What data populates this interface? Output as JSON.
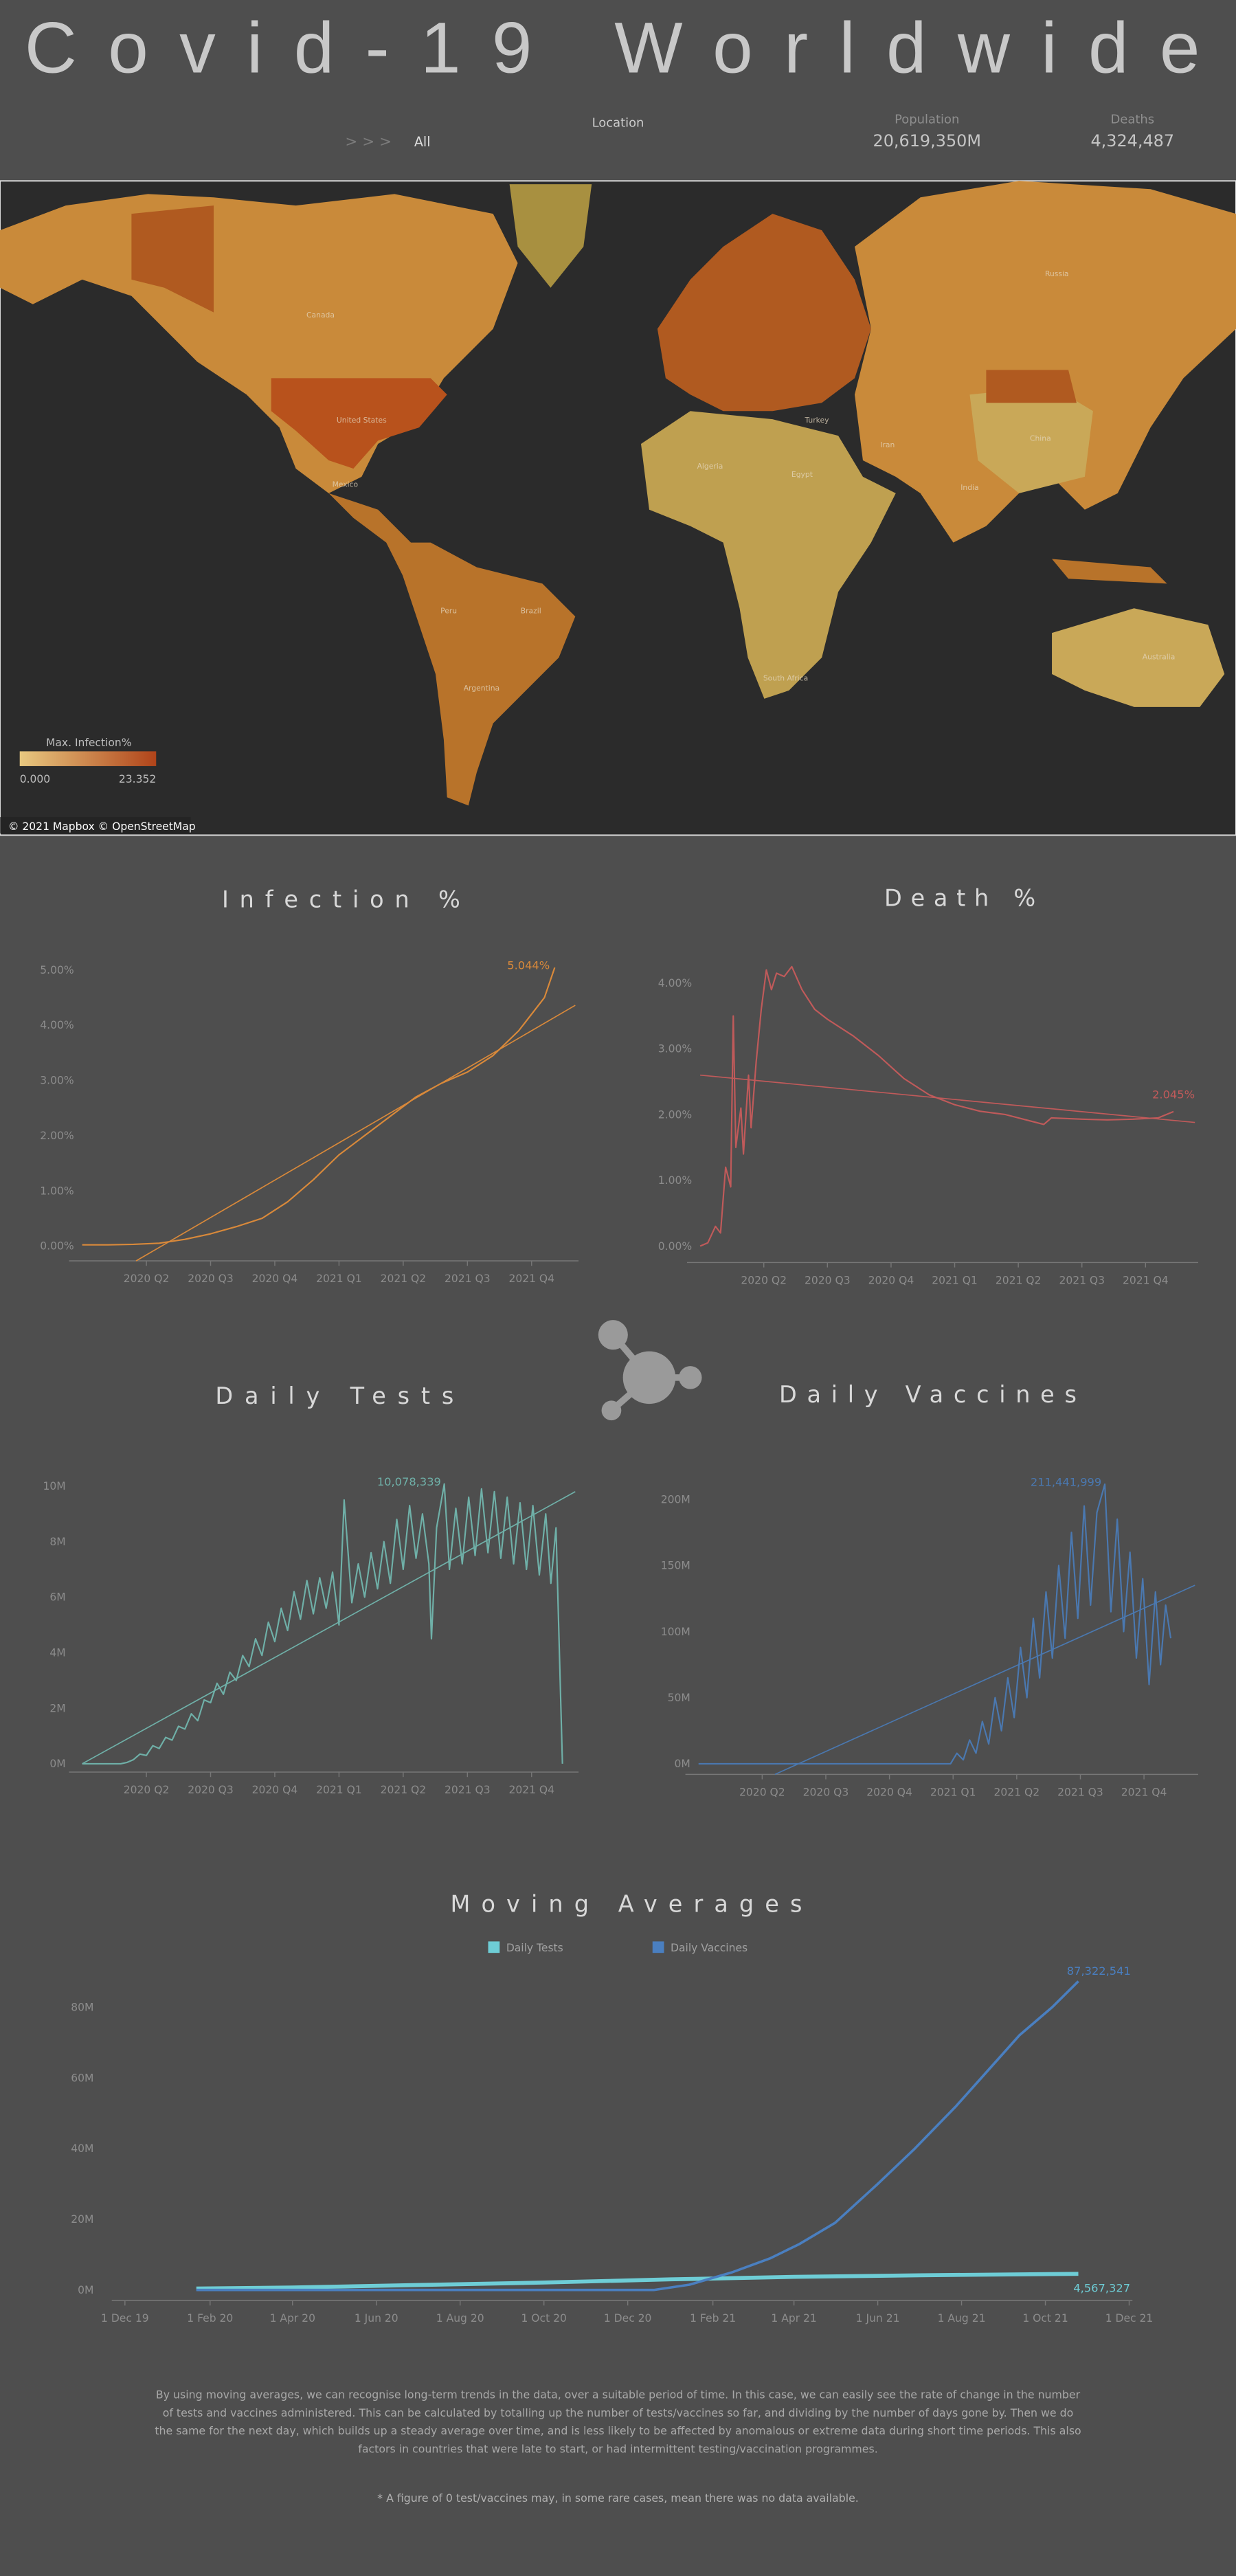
{
  "header": {
    "title": "Covid-19 Worldwide",
    "breadcrumb": "> > >",
    "filter": "All",
    "location_label": "Location",
    "population_label": "Population",
    "population": "20,619,350M",
    "deaths_label": "Deaths",
    "deaths": "4,324,487"
  },
  "map": {
    "labels": [
      "Canada",
      "United States",
      "Russia",
      "China",
      "India",
      "Brazil",
      "Australia",
      "Algeria",
      "Peru",
      "Argentina",
      "Iran",
      "Turkey",
      "Egypt",
      "South Africa",
      "Mexico"
    ],
    "legend": {
      "title": "Max. Infection%",
      "min": "0.000",
      "max": "23.352"
    },
    "credit": "© 2021 Mapbox © OpenStreetMap"
  },
  "chart_data": [
    {
      "type": "line",
      "title": "Infection %",
      "color": "#d9893a",
      "x": [
        2020.0,
        2020.1,
        2020.2,
        2020.3,
        2020.4,
        2020.5,
        2020.6,
        2020.7,
        2020.8,
        2020.9,
        2021.0,
        2021.1,
        2021.2,
        2021.3,
        2021.4,
        2021.5,
        2021.6,
        2021.7,
        2021.8,
        2021.84
      ],
      "values": [
        0.02,
        0.02,
        0.03,
        0.05,
        0.12,
        0.22,
        0.35,
        0.5,
        0.8,
        1.2,
        1.65,
        2.0,
        2.35,
        2.7,
        2.95,
        3.15,
        3.45,
        3.9,
        4.5,
        5.044
      ],
      "value_labels": [
        null,
        null,
        null,
        null,
        null,
        null,
        null,
        null,
        null,
        null,
        null,
        null,
        null,
        null,
        null,
        null,
        null,
        null,
        null,
        "5.044%"
      ],
      "trend": {
        "x": [
          2020.21,
          2021.92
        ],
        "values": [
          -0.27,
          4.36
        ]
      },
      "xlim": [
        2020.0,
        2021.92
      ],
      "ylim": [
        -0.27,
        5.2
      ],
      "xticks": [
        {
          "value": 2020.25,
          "label": "2020 Q2"
        },
        {
          "value": 2020.5,
          "label": "2020 Q3"
        },
        {
          "value": 2020.75,
          "label": "2020 Q4"
        },
        {
          "value": 2021.0,
          "label": "2021 Q1"
        },
        {
          "value": 2021.25,
          "label": "2021 Q2"
        },
        {
          "value": 2021.5,
          "label": "2021 Q3"
        },
        {
          "value": 2021.75,
          "label": "2021 Q4"
        }
      ],
      "yticks": [
        {
          "value": 0,
          "label": "0.00%"
        },
        {
          "value": 1,
          "label": "1.00%"
        },
        {
          "value": 2,
          "label": "2.00%"
        },
        {
          "value": 3,
          "label": "3.00%"
        },
        {
          "value": 4,
          "label": "4.00%"
        },
        {
          "value": 5,
          "label": "5.00%"
        }
      ]
    },
    {
      "type": "line",
      "title": "Death %",
      "color": "#c05a5a",
      "x": [
        2020.0,
        2020.03,
        2020.06,
        2020.08,
        2020.1,
        2020.12,
        2020.13,
        2020.14,
        2020.16,
        2020.17,
        2020.19,
        2020.2,
        2020.22,
        2020.24,
        2020.26,
        2020.28,
        2020.3,
        2020.33,
        2020.36,
        2020.4,
        2020.45,
        2020.5,
        2020.6,
        2020.7,
        2020.8,
        2020.9,
        2021.0,
        2021.1,
        2021.2,
        2021.3,
        2021.35,
        2021.38,
        2021.5,
        2021.6,
        2021.7,
        2021.8,
        2021.86
      ],
      "values": [
        0,
        0.05,
        0.3,
        0.2,
        1.2,
        0.9,
        3.5,
        1.5,
        2.1,
        1.4,
        2.6,
        1.8,
        2.8,
        3.6,
        4.2,
        3.9,
        4.15,
        4.1,
        4.25,
        3.9,
        3.6,
        3.45,
        3.2,
        2.9,
        2.55,
        2.3,
        2.15,
        2.05,
        2.0,
        1.9,
        1.85,
        1.95,
        1.93,
        1.92,
        1.93,
        1.95,
        2.045
      ],
      "value_labels": [
        null,
        null,
        null,
        null,
        null,
        null,
        null,
        null,
        null,
        null,
        null,
        null,
        null,
        null,
        null,
        null,
        null,
        null,
        null,
        null,
        null,
        null,
        null,
        null,
        null,
        null,
        null,
        null,
        null,
        null,
        null,
        null,
        null,
        null,
        null,
        null,
        "2.045%"
      ],
      "trend": {
        "x": [
          2020.0,
          2021.944
        ],
        "values": [
          2.6,
          1.88
        ]
      },
      "xlim": [
        2020.0,
        2021.944
      ],
      "ylim": [
        -0.25,
        4.4
      ],
      "xticks": [
        {
          "value": 2020.25,
          "label": "2020 Q2"
        },
        {
          "value": 2020.5,
          "label": "2020 Q3"
        },
        {
          "value": 2020.75,
          "label": "2020 Q4"
        },
        {
          "value": 2021.0,
          "label": "2021 Q1"
        },
        {
          "value": 2021.25,
          "label": "2021 Q2"
        },
        {
          "value": 2021.5,
          "label": "2021 Q3"
        },
        {
          "value": 2021.75,
          "label": "2021 Q4"
        }
      ],
      "yticks": [
        {
          "value": 0,
          "label": "0.00%"
        },
        {
          "value": 1,
          "label": "1.00%"
        },
        {
          "value": 2,
          "label": "2.00%"
        },
        {
          "value": 3,
          "label": "3.00%"
        },
        {
          "value": 4,
          "label": "4.00%"
        }
      ]
    },
    {
      "type": "line",
      "title": "Daily Tests",
      "color": "#6fb0a8",
      "x": [
        2020.0,
        2020.15,
        2020.175,
        2020.2,
        2020.225,
        2020.25,
        2020.275,
        2020.3,
        2020.325,
        2020.35,
        2020.375,
        2020.4,
        2020.425,
        2020.45,
        2020.475,
        2020.5,
        2020.525,
        2020.55,
        2020.575,
        2020.6,
        2020.625,
        2020.65,
        2020.675,
        2020.7,
        2020.725,
        2020.75,
        2020.775,
        2020.8,
        2020.825,
        2020.85,
        2020.875,
        2020.9,
        2020.925,
        2020.95,
        2020.975,
        2021.0,
        2021.02,
        2021.05,
        2021.075,
        2021.1,
        2021.125,
        2021.15,
        2021.175,
        2021.2,
        2021.225,
        2021.25,
        2021.275,
        2021.3,
        2021.325,
        2021.35,
        2021.36,
        2021.38,
        2021.41,
        2021.43,
        2021.455,
        2021.48,
        2021.505,
        2021.53,
        2021.555,
        2021.58,
        2021.605,
        2021.63,
        2021.655,
        2021.68,
        2021.705,
        2021.73,
        2021.755,
        2021.78,
        2021.805,
        2021.825,
        2021.845,
        2021.87
      ],
      "values": [
        0,
        0,
        50000,
        150000,
        350000,
        300000,
        650000,
        550000,
        950000,
        850000,
        1350000,
        1250000,
        1800000,
        1550000,
        2300000,
        2200000,
        2900000,
        2500000,
        3300000,
        3000000,
        3900000,
        3500000,
        4500000,
        3900000,
        5100000,
        4400000,
        5600000,
        4800000,
        6200000,
        5200000,
        6600000,
        5400000,
        6700000,
        5600000,
        6900000,
        5000000,
        9500000,
        5800000,
        7200000,
        6000000,
        7600000,
        6300000,
        8000000,
        6500000,
        8800000,
        7000000,
        9300000,
        7400000,
        9000000,
        7200000,
        4500000,
        8500000,
        10078339,
        7000000,
        9200000,
        7200000,
        9600000,
        7500000,
        9900000,
        7600000,
        9800000,
        7400000,
        9600000,
        7200000,
        9400000,
        7000000,
        9300000,
        6800000,
        9000000,
        6500000,
        8500000,
        0
      ],
      "value_labels": [
        null,
        null,
        null,
        null,
        null,
        null,
        null,
        null,
        null,
        null,
        null,
        null,
        null,
        null,
        null,
        null,
        null,
        null,
        null,
        null,
        null,
        null,
        null,
        null,
        null,
        null,
        null,
        null,
        null,
        null,
        null,
        null,
        null,
        null,
        null,
        null,
        null,
        null,
        null,
        null,
        null,
        null,
        null,
        null,
        null,
        null,
        null,
        null,
        null,
        null,
        null,
        null,
        "10,078,339",
        null,
        null,
        null,
        null,
        null,
        null,
        null,
        null,
        null,
        null,
        null,
        null,
        null,
        null,
        null,
        null,
        null,
        null,
        null
      ],
      "trend": {
        "x": [
          2020.0,
          2021.92
        ],
        "values": [
          0,
          9800000
        ]
      },
      "xlim": [
        2020.0,
        2021.92
      ],
      "ylim": [
        -300000,
        10800000
      ],
      "xticks": [
        {
          "value": 2020.25,
          "label": "2020 Q2"
        },
        {
          "value": 2020.5,
          "label": "2020 Q3"
        },
        {
          "value": 2020.75,
          "label": "2020 Q4"
        },
        {
          "value": 2021.0,
          "label": "2021 Q1"
        },
        {
          "value": 2021.25,
          "label": "2021 Q2"
        },
        {
          "value": 2021.5,
          "label": "2021 Q3"
        },
        {
          "value": 2021.75,
          "label": "2021 Q4"
        }
      ],
      "yticks": [
        {
          "value": 0,
          "label": "0M"
        },
        {
          "value": 2000000,
          "label": "2M"
        },
        {
          "value": 4000000,
          "label": "4M"
        },
        {
          "value": 6000000,
          "label": "6M"
        },
        {
          "value": 8000000,
          "label": "8M"
        },
        {
          "value": 10000000,
          "label": "10M"
        }
      ]
    },
    {
      "type": "line",
      "title": "Daily Vaccines",
      "color": "#4a78b0",
      "x": [
        2020.0,
        2020.99,
        2021.015,
        2021.04,
        2021.065,
        2021.09,
        2021.115,
        2021.14,
        2021.165,
        2021.19,
        2021.215,
        2021.24,
        2021.265,
        2021.29,
        2021.315,
        2021.34,
        2021.365,
        2021.39,
        2021.415,
        2021.44,
        2021.465,
        2021.49,
        2021.515,
        2021.54,
        2021.565,
        2021.596,
        2021.62,
        2021.645,
        2021.67,
        2021.695,
        2021.72,
        2021.745,
        2021.77,
        2021.795,
        2021.815,
        2021.835,
        2021.855
      ],
      "values": [
        0,
        0,
        8000000,
        3000000,
        18000000,
        8000000,
        32000000,
        15000000,
        50000000,
        25000000,
        65000000,
        35000000,
        88000000,
        50000000,
        110000000,
        65000000,
        130000000,
        80000000,
        150000000,
        95000000,
        175000000,
        110000000,
        195000000,
        120000000,
        190000000,
        211441999,
        115000000,
        185000000,
        100000000,
        160000000,
        80000000,
        140000000,
        60000000,
        130000000,
        75000000,
        120000000,
        95000000
      ],
      "value_labels": [
        null,
        null,
        null,
        null,
        null,
        null,
        null,
        null,
        null,
        null,
        null,
        null,
        null,
        null,
        null,
        null,
        null,
        null,
        null,
        null,
        null,
        null,
        null,
        null,
        null,
        "211,441,999",
        null,
        null,
        null,
        null,
        null,
        null,
        null,
        null,
        null,
        null,
        null
      ],
      "trend": {
        "x": [
          2020.3,
          2021.95
        ],
        "values": [
          -8000000,
          135000000
        ]
      },
      "xlim": [
        2020.0,
        2021.95
      ],
      "ylim": [
        -8000000,
        215000000
      ],
      "xticks": [
        {
          "value": 2020.25,
          "label": "2020 Q2"
        },
        {
          "value": 2020.5,
          "label": "2020 Q3"
        },
        {
          "value": 2020.75,
          "label": "2020 Q4"
        },
        {
          "value": 2021.0,
          "label": "2021 Q1"
        },
        {
          "value": 2021.25,
          "label": "2021 Q2"
        },
        {
          "value": 2021.5,
          "label": "2021 Q3"
        },
        {
          "value": 2021.75,
          "label": "2021 Q4"
        }
      ],
      "yticks": [
        {
          "value": 0,
          "label": "0M"
        },
        {
          "value": 50000000,
          "label": "50M"
        },
        {
          "value": 100000000,
          "label": "100M"
        },
        {
          "value": 150000000,
          "label": "150M"
        },
        {
          "value": 200000000,
          "label": "200M"
        }
      ]
    },
    {
      "type": "line",
      "title": "Moving Averages",
      "series": [
        {
          "name": "Daily Tests",
          "color": "#6ecdd6",
          "x": [
            "2020-01-22",
            "2020-04-01",
            "2020-07-01",
            "2020-10-01",
            "2021-01-01",
            "2021-04-01",
            "2021-07-01",
            "2021-10-25"
          ],
          "values": [
            400000,
            700000,
            1400000,
            2100000,
            3000000,
            3700000,
            4150000,
            4567327
          ],
          "value_labels": [
            null,
            null,
            null,
            null,
            null,
            null,
            null,
            "4,567,327"
          ]
        },
        {
          "name": "Daily Vaccines",
          "color": "#4a7fc0",
          "x": [
            "2020-01-22",
            "2020-12-20",
            "2021-01-15",
            "2021-02-15",
            "2021-03-15",
            "2021-04-05",
            "2021-05-01",
            "2021-06-01",
            "2021-06-28",
            "2021-07-28",
            "2021-08-20",
            "2021-09-12",
            "2021-10-06",
            "2021-10-25"
          ],
          "values": [
            0,
            0,
            1500000,
            5000000,
            9000000,
            13000000,
            19000000,
            30000000,
            40000000,
            52000000,
            62000000,
            72000000,
            80000000,
            87322541
          ],
          "value_labels": [
            null,
            null,
            null,
            null,
            null,
            null,
            null,
            null,
            null,
            null,
            null,
            null,
            null,
            "87,322,541"
          ]
        }
      ],
      "xlim": [
        "2019-12-01",
        "2021-12-01"
      ],
      "ylim": [
        -3000000,
        90000000
      ],
      "xticks": [
        {
          "value": "2019-12-01",
          "label": "1 Dec 19"
        },
        {
          "value": "2020-02-01",
          "label": "1 Feb 20"
        },
        {
          "value": "2020-04-01",
          "label": "1 Apr 20"
        },
        {
          "value": "2020-06-01",
          "label": "1 Jun 20"
        },
        {
          "value": "2020-08-01",
          "label": "1 Aug 20"
        },
        {
          "value": "2020-10-01",
          "label": "1 Oct 20"
        },
        {
          "value": "2020-12-01",
          "label": "1 Dec 20"
        },
        {
          "value": "2021-02-01",
          "label": "1 Feb 21"
        },
        {
          "value": "2021-04-01",
          "label": "1 Apr 21"
        },
        {
          "value": "2021-06-01",
          "label": "1 Jun 21"
        },
        {
          "value": "2021-08-01",
          "label": "1 Aug 21"
        },
        {
          "value": "2021-10-01",
          "label": "1 Oct 21"
        },
        {
          "value": "2021-12-01",
          "label": "1 Dec 21"
        }
      ],
      "yticks": [
        {
          "value": 0,
          "label": "0M"
        },
        {
          "value": 20000000,
          "label": "20M"
        },
        {
          "value": 40000000,
          "label": "40M"
        },
        {
          "value": 60000000,
          "label": "60M"
        },
        {
          "value": 80000000,
          "label": "80M"
        }
      ]
    }
  ],
  "footer": {
    "paragraph": [
      "By using moving averages, we can recognise long-term trends in the data, over a suitable period of time. In this case, we can easily see the rate of change in the number",
      "of tests and vaccines administered. This can be calculated by totalling up the number of tests/vaccines so far, and dividing by the number of days gone by. Then we do",
      "the same for the next day, which builds up a steady average over time, and is less likely to be affected by anomalous or extreme data during short time periods. This also",
      "factors in countries that were late to start, or had intermittent testing/vaccination programmes."
    ],
    "note": "* A figure of 0 test/vaccines may, in some rare cases, mean there was no data available."
  }
}
